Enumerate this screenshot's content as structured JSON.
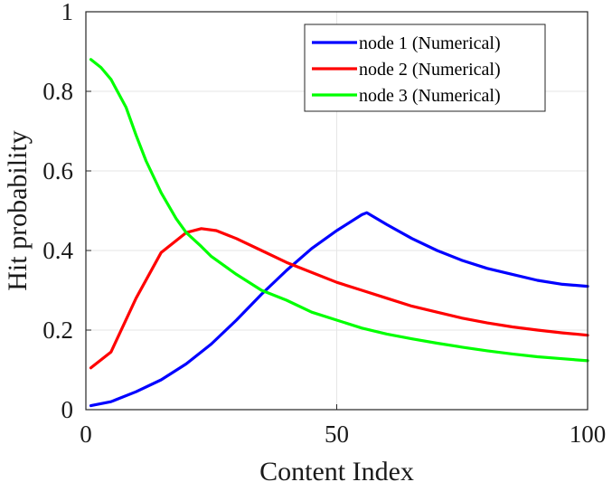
{
  "chart_data": {
    "type": "line",
    "title": "",
    "xlabel": "Content Index",
    "ylabel": "Hit probability",
    "xlim": [
      0,
      100
    ],
    "ylim": [
      0,
      1
    ],
    "xticks": [
      0,
      50,
      100
    ],
    "yticks": [
      0,
      0.2,
      0.4,
      0.6,
      0.8,
      1
    ],
    "ytick_labels": [
      "0",
      "0.2",
      "0.4",
      "0.6",
      "0.8",
      "1"
    ],
    "grid": true,
    "legend_position": "top-right",
    "series": [
      {
        "name": "node 1 (Numerical)",
        "color": "#0000ff",
        "x": [
          1,
          5,
          10,
          15,
          20,
          25,
          30,
          35,
          40,
          45,
          50,
          55,
          56,
          60,
          65,
          70,
          75,
          80,
          85,
          90,
          95,
          100
        ],
        "y": [
          0.01,
          0.02,
          0.045,
          0.075,
          0.115,
          0.165,
          0.225,
          0.29,
          0.35,
          0.405,
          0.45,
          0.49,
          0.495,
          0.465,
          0.43,
          0.4,
          0.375,
          0.355,
          0.34,
          0.325,
          0.315,
          0.31
        ]
      },
      {
        "name": "node 2 (Numerical)",
        "color": "#ff0000",
        "x": [
          1,
          5,
          10,
          15,
          20,
          23,
          26,
          30,
          35,
          40,
          45,
          50,
          55,
          60,
          65,
          70,
          75,
          80,
          85,
          90,
          95,
          100
        ],
        "y": [
          0.105,
          0.145,
          0.28,
          0.395,
          0.445,
          0.455,
          0.45,
          0.43,
          0.4,
          0.37,
          0.345,
          0.32,
          0.3,
          0.28,
          0.26,
          0.245,
          0.23,
          0.218,
          0.208,
          0.2,
          0.193,
          0.187
        ]
      },
      {
        "name": "node 3 (Numerical)",
        "color": "#00ff00",
        "x": [
          1,
          3,
          5,
          8,
          10,
          12,
          15,
          18,
          20,
          23,
          25,
          30,
          35,
          40,
          45,
          50,
          55,
          60,
          65,
          70,
          75,
          80,
          85,
          90,
          95,
          100
        ],
        "y": [
          0.88,
          0.86,
          0.83,
          0.76,
          0.69,
          0.625,
          0.545,
          0.48,
          0.445,
          0.41,
          0.385,
          0.34,
          0.3,
          0.275,
          0.245,
          0.225,
          0.205,
          0.19,
          0.178,
          0.167,
          0.157,
          0.148,
          0.14,
          0.133,
          0.128,
          0.123
        ]
      }
    ]
  }
}
